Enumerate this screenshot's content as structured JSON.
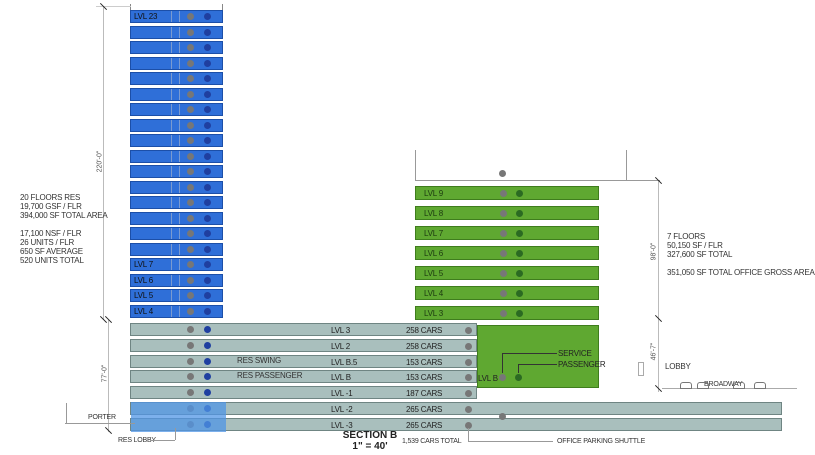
{
  "residential": {
    "levels": [
      "LVL 23",
      "",
      "",
      "",
      "",
      "",
      "",
      "",
      "",
      "",
      "",
      "",
      "",
      "",
      "",
      "",
      "LVL 7",
      "LVL 6",
      "LVL 5",
      "LVL 4"
    ],
    "notes": [
      "20 FLOORS RES",
      "19,700 GSF / FLR",
      "394,000 SF TOTAL AREA",
      "",
      "17,100 NSF / FLR",
      "26 UNITS / FLR",
      "650 SF AVERAGE",
      "520 UNITS TOTAL"
    ],
    "height_dim": "220'-0\"",
    "color": "#2f6fd8"
  },
  "office": {
    "levels": [
      "LVL 9",
      "LVL 8",
      "LVL 7",
      "LVL 6",
      "LVL 5",
      "LVL 4",
      "LVL 3"
    ],
    "notes": [
      "7 FLOORS",
      "50,150 SF / FLR",
      "327,600 SF TOTAL",
      "",
      "351,050 SF TOTAL OFFICE GROSS AREA"
    ],
    "height_dim": "98'-0\"",
    "podium_level": "LVL B",
    "elevators": [
      "SERVICE",
      "PASSENGER"
    ],
    "color": "#5fa831"
  },
  "parking": {
    "levels": [
      {
        "label": "LVL 3",
        "cars": "258 CARS"
      },
      {
        "label": "LVL 2",
        "cars": "258 CARS"
      },
      {
        "label": "LVL B.5",
        "cars": "153 CARS"
      },
      {
        "label": "LVL B",
        "cars": "153 CARS"
      },
      {
        "label": "LVL -1",
        "cars": "187 CARS"
      },
      {
        "label": "LVL -2",
        "cars": "265 CARS"
      },
      {
        "label": "LVL -3",
        "cars": "265 CARS"
      }
    ],
    "total": "1,539 CARS TOTAL",
    "height_dim": "77'-0\"",
    "res_swing": "RES SWING",
    "res_passenger": "RES PASSENGER",
    "shuttle": "OFFICE PARKING SHUTTLE",
    "color": "#a9bfbd"
  },
  "street": {
    "lobby": "LOBBY",
    "street_name": "BROADWAY",
    "lobby_dim": "46'-7\"",
    "porter": "PORTER",
    "res_lobby": "RES LOBBY"
  },
  "title": {
    "name": "SECTION B",
    "scale": "1\" = 40'"
  }
}
